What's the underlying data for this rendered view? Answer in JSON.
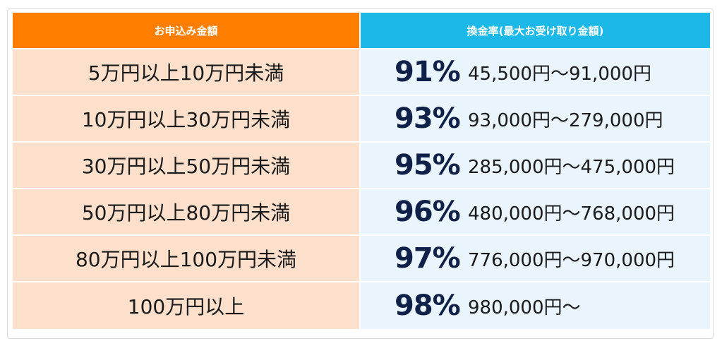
{
  "table": {
    "headers": {
      "amount": "お申込み金額",
      "rate": "換金率(最大お受け取り金額)"
    },
    "rows": [
      {
        "amount": "5万円以上10万円未満",
        "rate": "91%",
        "payout": "45,500円〜91,000円"
      },
      {
        "amount": "10万円以上30万円未満",
        "rate": "93%",
        "payout": "93,000円〜279,000円"
      },
      {
        "amount": "30万円以上50万円未満",
        "rate": "95%",
        "payout": "285,000円〜475,000円"
      },
      {
        "amount": "50万円以上80万円未満",
        "rate": "96%",
        "payout": "480,000円〜768,000円"
      },
      {
        "amount": "80万円以上100万円未満",
        "rate": "97%",
        "payout": "776,000円〜970,000円"
      },
      {
        "amount": "100万円以上",
        "rate": "98%",
        "payout": "980,000円〜"
      }
    ],
    "colors": {
      "amount_header": "#ff7e00",
      "rate_header": "#1bb8e8",
      "amount_cell": "#fde0cc",
      "rate_cell": "#eaf4fc",
      "rate_text": "#0f2148"
    }
  }
}
